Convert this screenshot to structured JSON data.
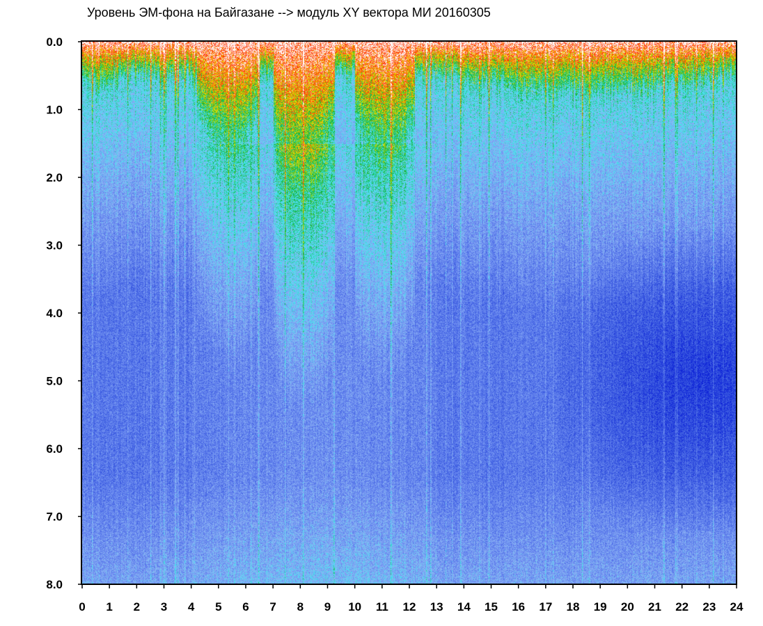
{
  "chart_data": {
    "type": "heatmap",
    "title": "Уровень ЭМ-фона на Байгазане  -->  модуль XY вектора МИ  20160305",
    "xlabel": "",
    "ylabel": "",
    "xlim": [
      0,
      24
    ],
    "ylim": [
      0,
      8
    ],
    "y_inverted": true,
    "x_ticks": [
      "0",
      "1",
      "2",
      "3",
      "4",
      "5",
      "6",
      "7",
      "8",
      "9",
      "10",
      "11",
      "12",
      "13",
      "14",
      "15",
      "16",
      "17",
      "18",
      "19",
      "20",
      "21",
      "22",
      "23",
      "24"
    ],
    "y_ticks": [
      "0.0",
      "1.0",
      "2.0",
      "3.0",
      "4.0",
      "5.0",
      "6.0",
      "7.0",
      "8.0"
    ],
    "colormap": [
      "#0a1ed6",
      "#3a5ae0",
      "#6b8af0",
      "#8cb4f4",
      "#40e6f0",
      "#12b030",
      "#f2e800",
      "#ff2a00",
      "#ffffff"
    ],
    "colormap_order": "low to high intensity",
    "hotspots": [
      {
        "x": [
          0,
          1.5
        ],
        "y_bottom": 0.75,
        "intensity": "medium"
      },
      {
        "x": [
          4.2,
          6.5
        ],
        "y_bottom": 1.7,
        "intensity": "high"
      },
      {
        "x": [
          7.0,
          9.2
        ],
        "y_bottom": 2.4,
        "intensity": "high"
      },
      {
        "x": [
          10.0,
          12.2
        ],
        "y_bottom": 1.9,
        "intensity": "high"
      },
      {
        "x": [
          13.0,
          24
        ],
        "y_bottom": 0.8,
        "intensity": "medium"
      }
    ],
    "dark_region": {
      "x": [
        16.5,
        24
      ],
      "y": [
        2.8,
        7.2
      ],
      "note": "lowest intensity (dark blue)"
    }
  }
}
